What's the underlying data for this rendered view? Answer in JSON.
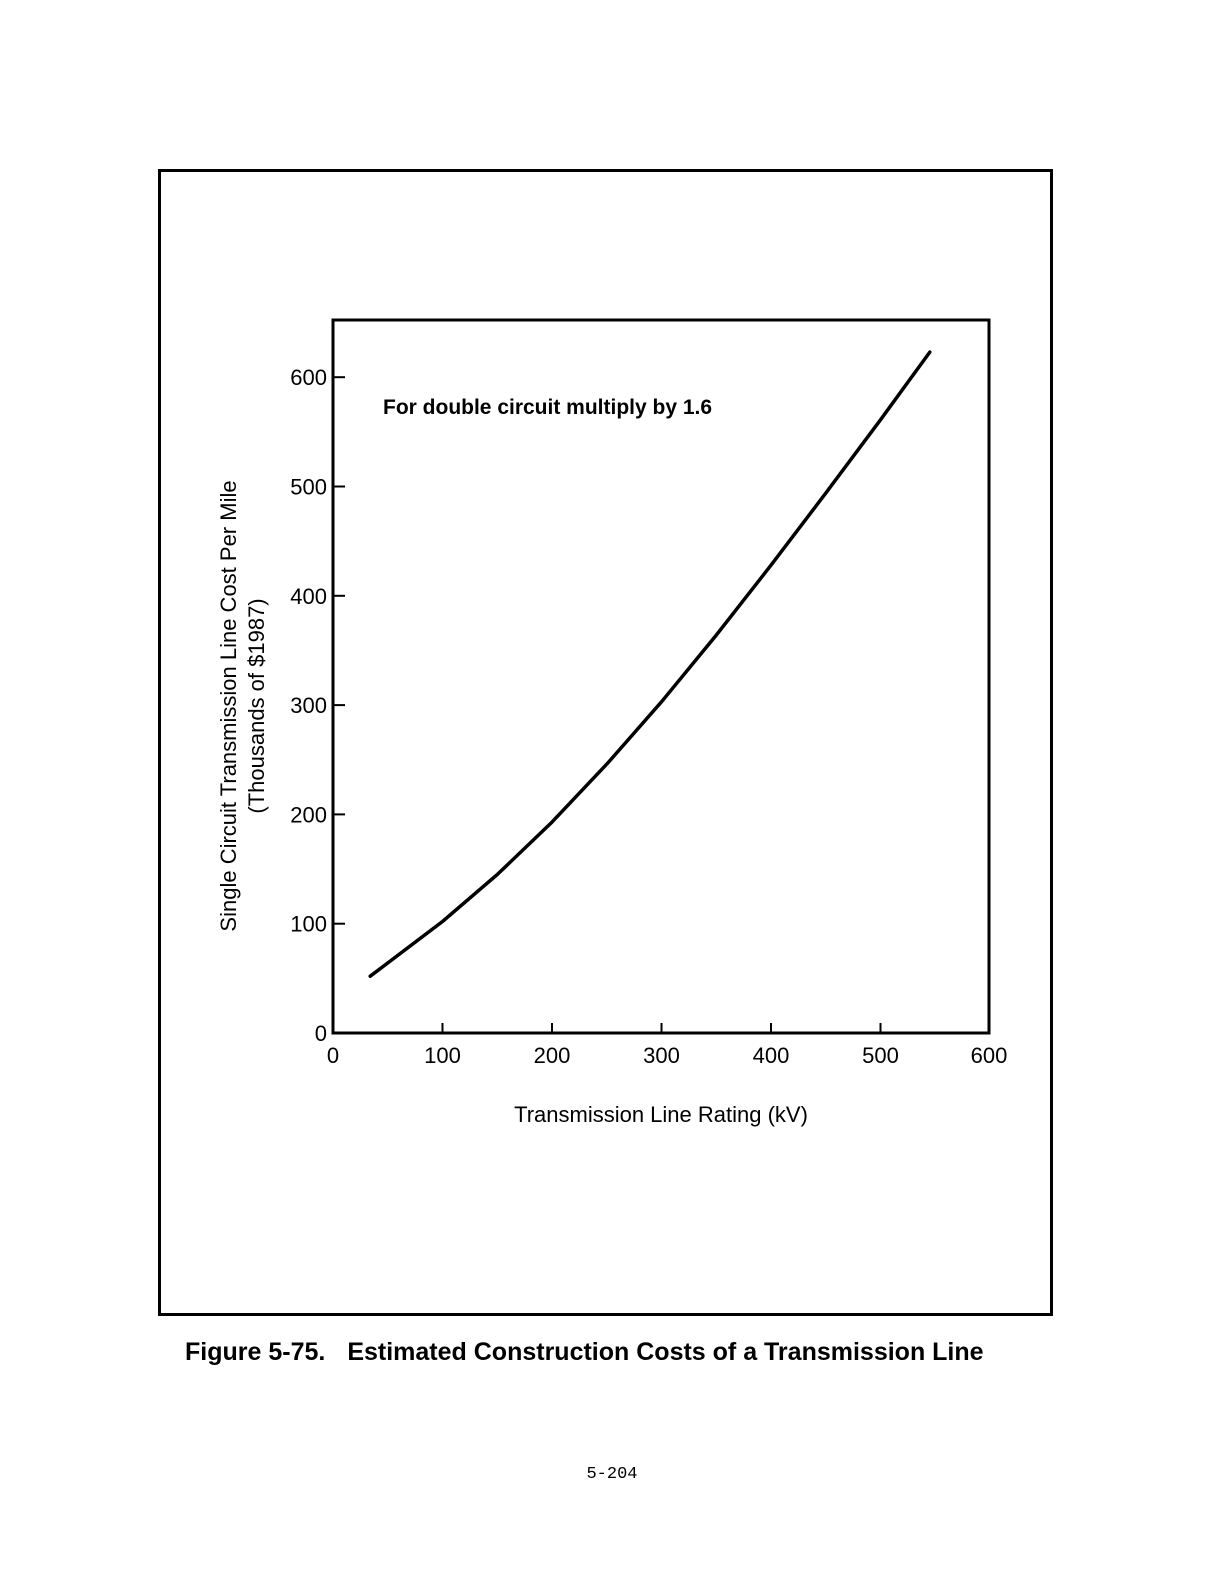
{
  "figure": {
    "number": "Figure 5-75.",
    "title": "Estimated Construction Costs of a Transmission Line"
  },
  "page_number": "5-204",
  "chart_data": {
    "type": "line",
    "title": "",
    "xlabel": "Transmission Line Rating (kV)",
    "ylabel_line1": "Single Circuit Transmission Line Cost Per Mile",
    "ylabel_line2": "(Thousands of $1987)",
    "annotation": "For double circuit multiply by 1.6",
    "xlim": [
      0,
      600
    ],
    "ylim": [
      0,
      650
    ],
    "x_ticks": [
      0,
      100,
      200,
      300,
      400,
      500,
      600
    ],
    "y_ticks": [
      0,
      100,
      200,
      300,
      400,
      500,
      600
    ],
    "grid": false,
    "series": [
      {
        "x": [
          34,
          100,
          150,
          200,
          250,
          300,
          350,
          400,
          450,
          500,
          545
        ],
        "y": [
          52,
          102,
          145,
          193,
          246,
          303,
          364,
          428,
          494,
          561,
          623
        ]
      }
    ],
    "line_color": "#000000"
  }
}
